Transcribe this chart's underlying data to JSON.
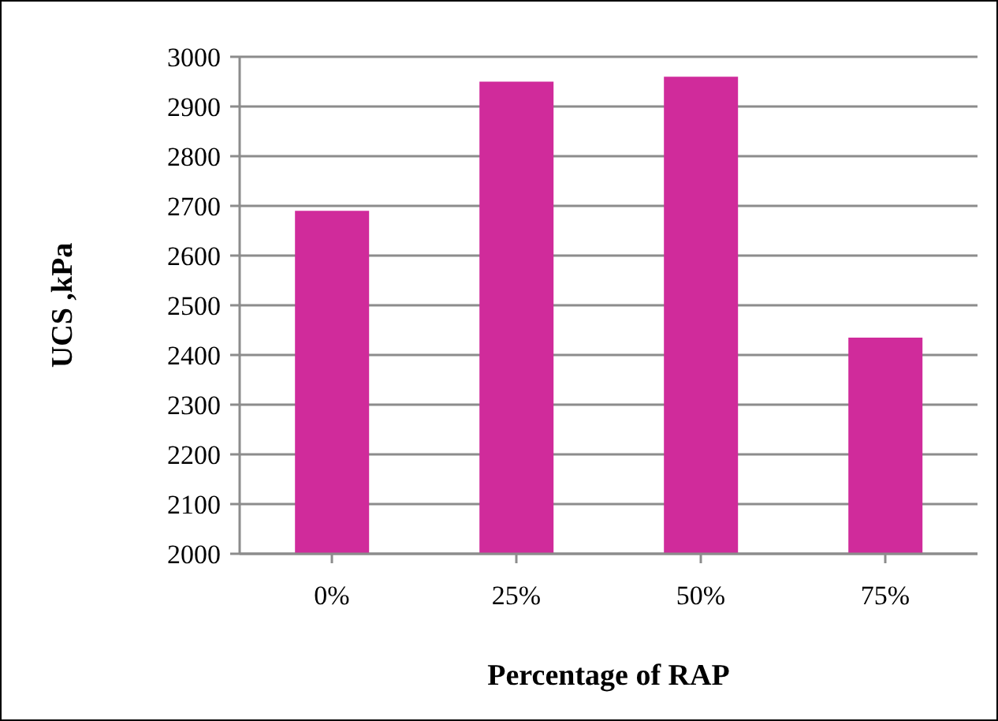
{
  "chart_data": {
    "type": "bar",
    "xlabel": "Percentage of RAP",
    "ylabel": "UCS ,kPa",
    "categories": [
      "0%",
      "25%",
      "50%",
      "75%"
    ],
    "values": [
      2690,
      2950,
      2960,
      2435
    ],
    "color": "#d02b9b",
    "ylim": [
      2000,
      3000
    ],
    "yticks": [
      2000,
      2100,
      2200,
      2300,
      2400,
      2500,
      2600,
      2700,
      2800,
      2900,
      3000
    ],
    "grid": "y"
  }
}
